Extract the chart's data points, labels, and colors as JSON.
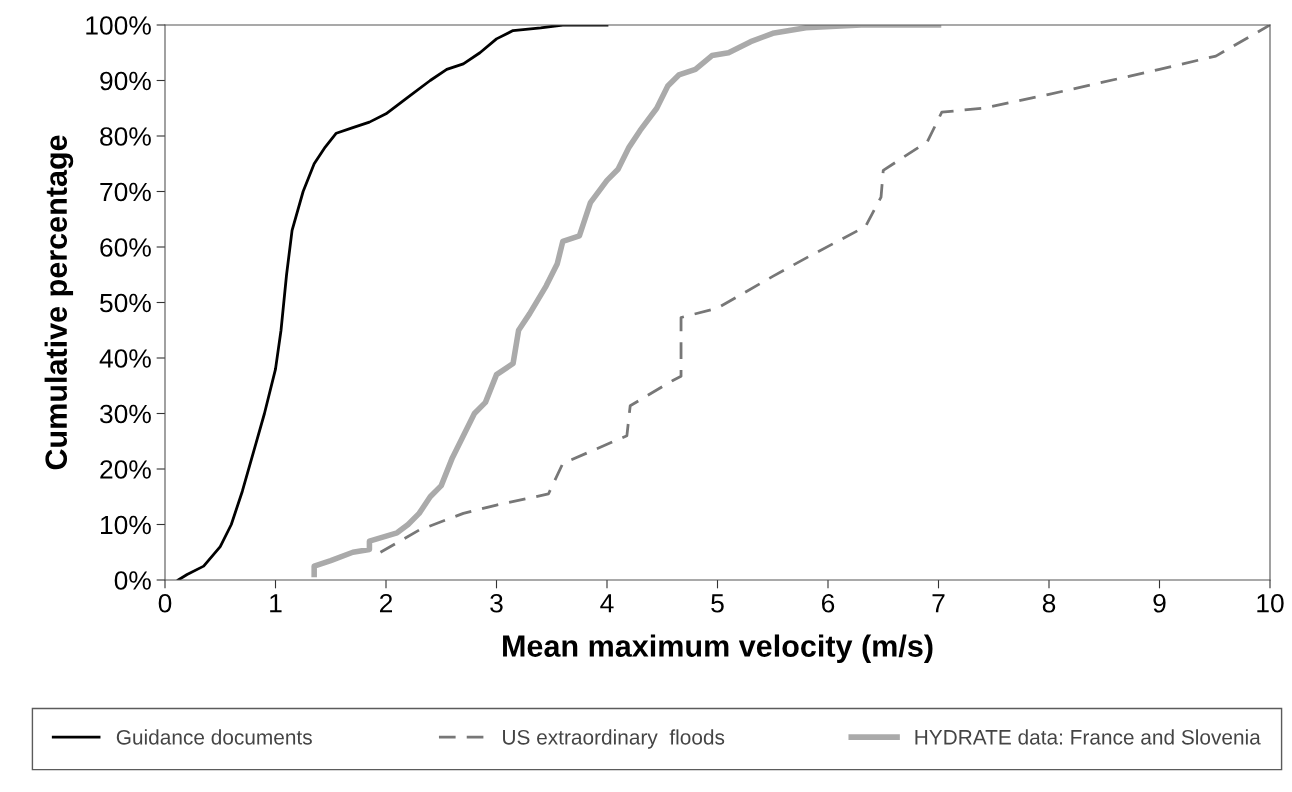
{
  "chart_data": {
    "type": "line",
    "xlabel": "Mean maximum velocity (m/s)",
    "ylabel": "Cumulative percentage",
    "xlim": [
      0,
      10
    ],
    "xticks": [
      0,
      1,
      2,
      3,
      4,
      5,
      6,
      7,
      8,
      9,
      10
    ],
    "ylim": [
      0,
      100
    ],
    "yticks": [
      {
        "value": 0,
        "label": "0%"
      },
      {
        "value": 10,
        "label": "10%"
      },
      {
        "value": 20,
        "label": "20%"
      },
      {
        "value": 30,
        "label": "30%"
      },
      {
        "value": 40,
        "label": "40%"
      },
      {
        "value": 50,
        "label": "50%"
      },
      {
        "value": 60,
        "label": "60%"
      },
      {
        "value": 70,
        "label": "70%"
      },
      {
        "value": 80,
        "label": "80%"
      },
      {
        "value": 90,
        "label": "90%"
      },
      {
        "value": 100,
        "label": "100%"
      }
    ],
    "grid": false,
    "legend": "bottom",
    "marker": "none",
    "series": [
      {
        "name": "Guidance documents",
        "color": "#000000",
        "line_style": "solid",
        "x": [
          0.12,
          0.2,
          0.35,
          0.5,
          0.6,
          0.7,
          0.8,
          0.9,
          1.0,
          1.05,
          1.1,
          1.15,
          1.25,
          1.35,
          1.45,
          1.55,
          1.7,
          1.85,
          2.0,
          2.2,
          2.4,
          2.55,
          2.7,
          2.85,
          3.0,
          3.15,
          3.4,
          3.6,
          4.0
        ],
        "values": [
          0,
          1,
          2.5,
          6,
          10,
          16,
          23,
          30,
          38,
          45,
          55,
          63,
          70,
          75,
          78,
          80.5,
          81.5,
          82.5,
          84,
          87,
          90,
          92,
          93,
          95,
          97.5,
          99,
          99.5,
          100,
          100
        ]
      },
      {
        "name": "US extraordinary  floods",
        "color": "#777777",
        "line_style": "dashed",
        "x": [
          1.95,
          2.3,
          2.7,
          3.0,
          3.47,
          3.6,
          4.18,
          4.21,
          4.6,
          4.67,
          4.67,
          5.0,
          5.5,
          5.8,
          6.34,
          6.48,
          6.5,
          6.9,
          7.03,
          7.4,
          8.0,
          9.0,
          9.51,
          10.0
        ],
        "values": [
          5,
          9,
          12,
          13.5,
          15.5,
          21,
          26,
          31.4,
          36,
          36.7,
          47.3,
          49,
          54.7,
          58,
          63.7,
          69,
          73.8,
          79,
          84.3,
          85,
          87.5,
          92,
          94.4,
          100
        ]
      },
      {
        "name": "HYDRATE data: France and Slovenia",
        "color": "#aaaaaa",
        "line_style": "solid",
        "x": [
          1.35,
          1.35,
          1.5,
          1.7,
          1.85,
          1.85,
          2.1,
          2.2,
          2.3,
          2.4,
          2.5,
          2.6,
          2.7,
          2.8,
          2.9,
          3.0,
          3.15,
          3.2,
          3.3,
          3.45,
          3.55,
          3.6,
          3.75,
          3.85,
          4.0,
          4.1,
          4.2,
          4.3,
          4.45,
          4.55,
          4.65,
          4.8,
          4.95,
          5.1,
          5.3,
          5.5,
          5.8,
          6.3,
          7.0
        ],
        "values": [
          1,
          2.5,
          3.5,
          5,
          5.5,
          7,
          8.5,
          10,
          12,
          15,
          17,
          22,
          26,
          30,
          32,
          37,
          39,
          45,
          48,
          53,
          57,
          61,
          62,
          68,
          72,
          74,
          78,
          81,
          85,
          89,
          91,
          92,
          94.5,
          95,
          97,
          98.5,
          99.5,
          100,
          100
        ]
      }
    ]
  }
}
